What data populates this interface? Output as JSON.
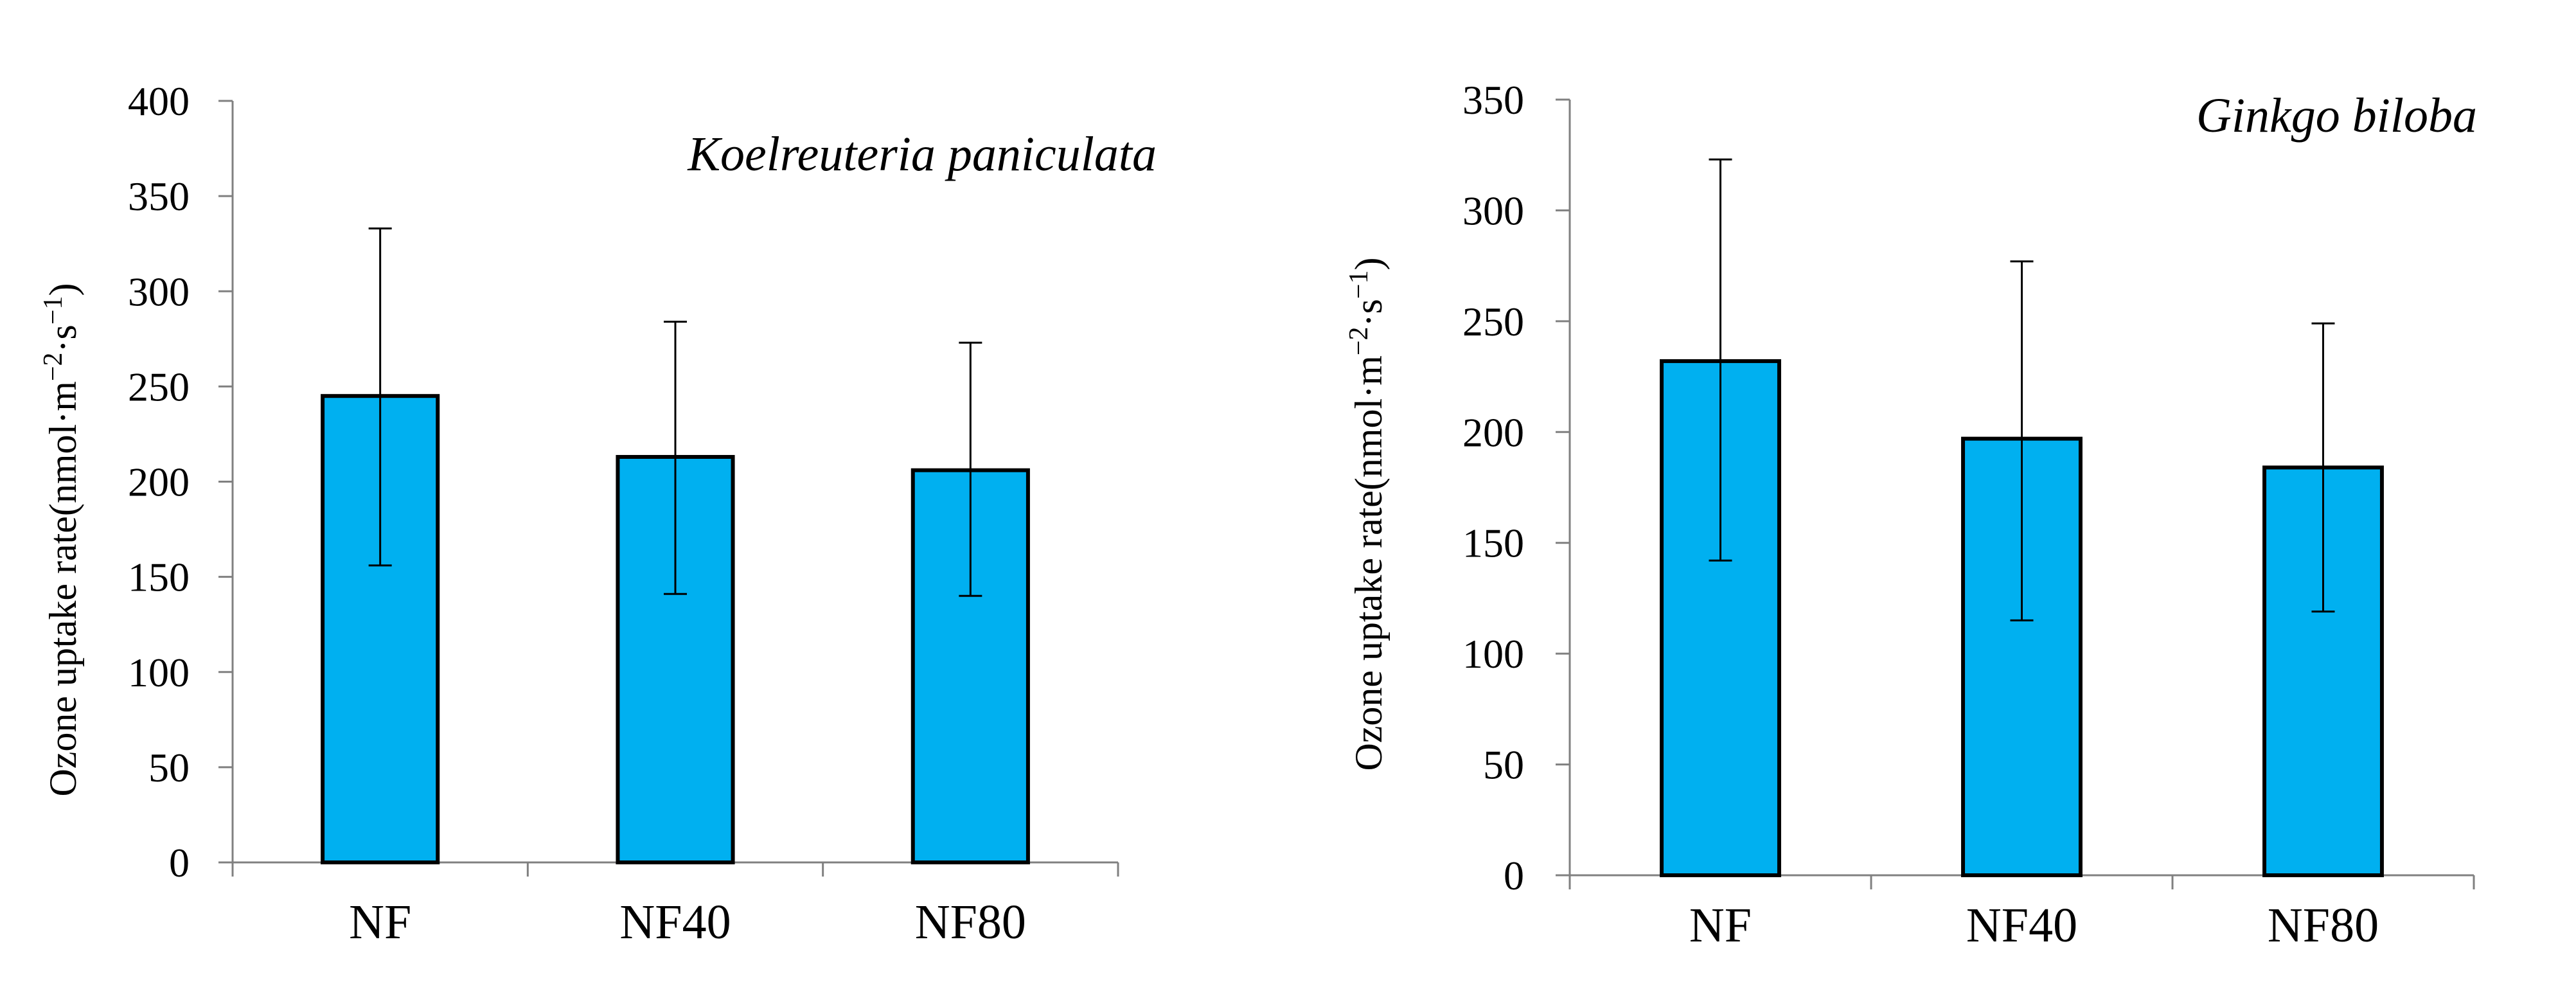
{
  "chart_data": [
    {
      "type": "bar",
      "title": "Koelreuteria paniculata",
      "categories": [
        "NF",
        "NF40",
        "NF80"
      ],
      "values": [
        245,
        213,
        206
      ],
      "errors_upper": [
        333,
        284,
        273
      ],
      "errors_lower": [
        156,
        141,
        140
      ],
      "xlabel": "",
      "ylabel": "Ozone uptake rate(nmol·m",
      "ylabel_sup1": "−2",
      "ylabel_mid": "·s",
      "ylabel_sup2": "−1",
      "ylabel_end": ")",
      "ylim": [
        0,
        400
      ],
      "yticks": [
        0,
        50,
        100,
        150,
        200,
        250,
        300,
        350,
        400
      ],
      "ytick_labels": [
        "0",
        "50",
        "100",
        "150",
        "200",
        "250",
        "300",
        "350",
        "400"
      ],
      "grid": false
    },
    {
      "type": "bar",
      "title": "Ginkgo biloba",
      "categories": [
        "NF",
        "NF40",
        "NF80"
      ],
      "values": [
        232,
        197,
        184
      ],
      "errors_upper": [
        323,
        277,
        249
      ],
      "errors_lower": [
        142,
        115,
        119
      ],
      "xlabel": "",
      "ylabel": "Ozone uptake rate(nmol·m",
      "ylabel_sup1": "−2",
      "ylabel_mid": "·s",
      "ylabel_sup2": "−1",
      "ylabel_end": ")",
      "ylim": [
        0,
        350
      ],
      "yticks": [
        0,
        50,
        100,
        150,
        200,
        250,
        300,
        350
      ],
      "ytick_labels": [
        "0",
        "50",
        "100",
        "150",
        "200",
        "250",
        "300",
        "350"
      ],
      "grid": false
    }
  ],
  "colors": {
    "bar_fill": "#00B0F0",
    "bar_edge": "#000000",
    "axis": "#808080",
    "error_bar": "#000000"
  }
}
